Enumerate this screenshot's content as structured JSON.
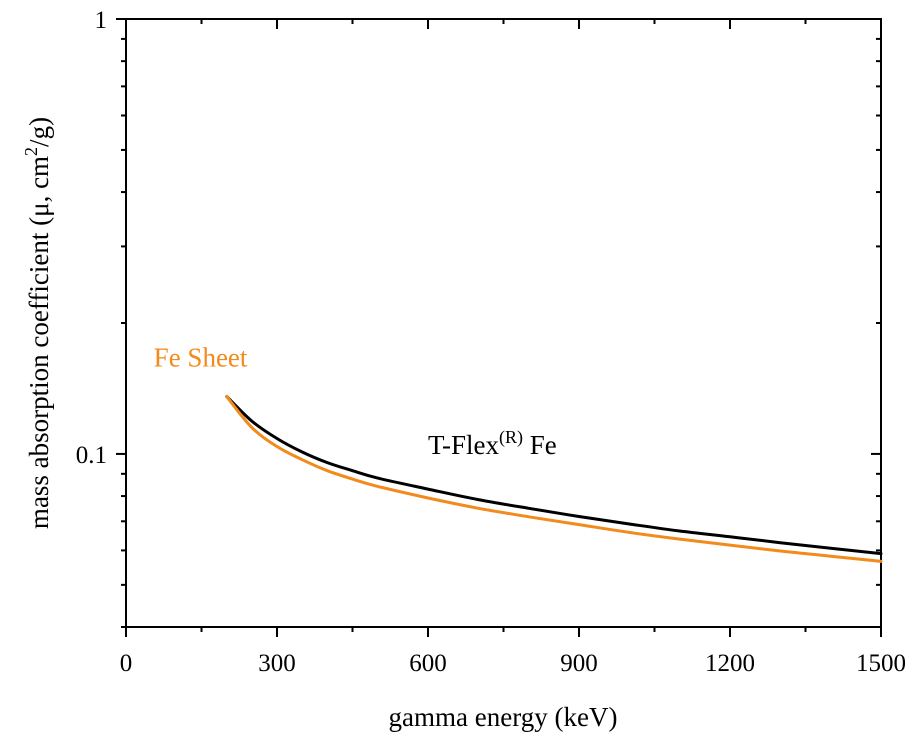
{
  "chart_data": {
    "type": "line",
    "xlabel": "gamma energy (keV)",
    "ylabel": "mass absorption coefficient (μ, cm",
    "ylabel_sup": "2",
    "ylabel_end": "/g)",
    "x_scale": "linear",
    "y_scale": "log",
    "xlim": [
      0,
      1500
    ],
    "ylim": [
      0.04,
      1
    ],
    "x_major_ticks": [
      0,
      300,
      600,
      900,
      1200,
      1500
    ],
    "x_tick_labels": [
      "0",
      "300",
      "600",
      "900",
      "1200",
      "1500"
    ],
    "y_tick_labels": [
      {
        "value": 0.1,
        "label": "0.1"
      },
      {
        "value": 1,
        "label": "1"
      }
    ],
    "grid": false,
    "legend": "none",
    "series": [
      {
        "label": "T-Flex",
        "label_sup": "(R)",
        "label_end": " Fe",
        "color": "#000000",
        "label_at": [
          600,
          0.1
        ],
        "x": [
          200,
          250,
          300,
          350,
          400,
          450,
          500,
          600,
          700,
          800,
          900,
          1000,
          1100,
          1200,
          1300,
          1400,
          1500
        ],
        "y": [
          0.1355,
          0.119,
          0.1085,
          0.101,
          0.0955,
          0.0915,
          0.088,
          0.083,
          0.0785,
          0.075,
          0.0718,
          0.069,
          0.0665,
          0.0645,
          0.0625,
          0.0607,
          0.059
        ]
      },
      {
        "label": "Fe Sheet",
        "label_sup": "",
        "label_end": "",
        "color": "#f28a1c",
        "label_at": [
          55,
          0.159
        ],
        "x": [
          200,
          250,
          300,
          350,
          400,
          450,
          500,
          600,
          700,
          800,
          900,
          1000,
          1100,
          1200,
          1300,
          1400,
          1500
        ],
        "y": [
          0.1355,
          0.115,
          0.104,
          0.097,
          0.0915,
          0.0875,
          0.0842,
          0.0792,
          0.075,
          0.0717,
          0.0688,
          0.066,
          0.0637,
          0.0617,
          0.0598,
          0.0582,
          0.0566
        ]
      }
    ]
  }
}
